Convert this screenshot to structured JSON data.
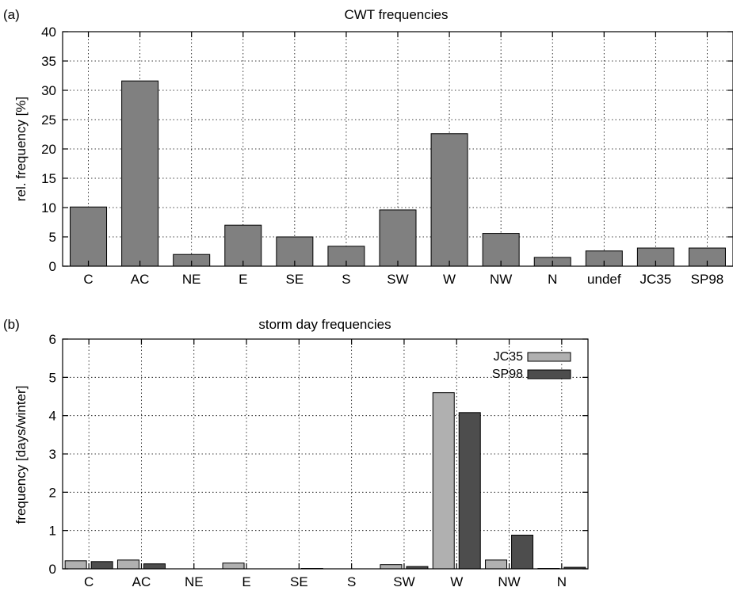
{
  "chart_data": [
    {
      "type": "bar",
      "panel_label": "(a)",
      "title": "CWT frequencies",
      "xlabel": "",
      "ylabel": "rel. frequency [%]",
      "ylim": [
        0,
        40
      ],
      "yticks": [
        0,
        5,
        10,
        15,
        20,
        25,
        30,
        35,
        40
      ],
      "grid": true,
      "categories": [
        "C",
        "AC",
        "NE",
        "E",
        "SE",
        "S",
        "SW",
        "W",
        "NW",
        "N",
        "undef",
        "JC35",
        "SP98"
      ],
      "series": [
        {
          "values": [
            10.1,
            31.6,
            2.0,
            7.0,
            5.0,
            3.4,
            9.6,
            22.6,
            5.6,
            1.5,
            2.6,
            3.1,
            3.1
          ],
          "color": "#808080"
        }
      ]
    },
    {
      "type": "bar",
      "panel_label": "(b)",
      "title": "storm day frequencies",
      "xlabel": "",
      "ylabel": "frequency [days/winter]",
      "ylim": [
        0,
        6
      ],
      "yticks": [
        0,
        1,
        2,
        3,
        4,
        5,
        6
      ],
      "grid": true,
      "legend_position": "top-right",
      "categories": [
        "C",
        "AC",
        "NE",
        "E",
        "SE",
        "S",
        "SW",
        "W",
        "NW",
        "N"
      ],
      "series": [
        {
          "name": "JC35",
          "values": [
            0.21,
            0.23,
            0.0,
            0.15,
            0.0,
            0.0,
            0.11,
            4.6,
            0.23,
            0.01
          ],
          "color": "#b0b0b0"
        },
        {
          "name": "SP98",
          "values": [
            0.19,
            0.13,
            0.0,
            0.0,
            0.01,
            0.0,
            0.06,
            4.08,
            0.88,
            0.04
          ],
          "color": "#4d4d4d"
        }
      ]
    }
  ]
}
